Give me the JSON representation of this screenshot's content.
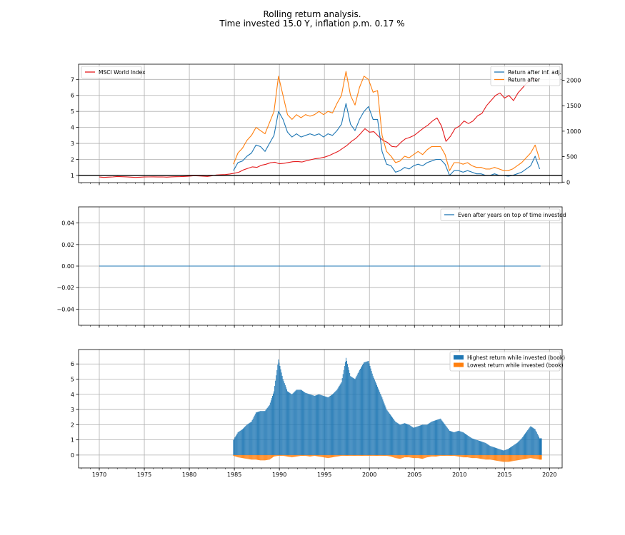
{
  "title_line1": "Rolling return analysis.",
  "title_line2": "Time invested 15.0 Y, inflation p.m. 0.17 %",
  "colors": {
    "msci": "#e41a1c",
    "blue": "#1f77b4",
    "orange": "#ff7f0e",
    "grid": "#b0b0b0"
  },
  "chart_data": [
    {
      "type": "line",
      "xlim": [
        1967.7,
        2021.4
      ],
      "xticks": [
        1970,
        1975,
        1980,
        1985,
        1990,
        1995,
        2000,
        2005,
        2010,
        2015,
        2020
      ],
      "ylim": [
        0.55,
        7.95
      ],
      "yticks": [
        1,
        2,
        3,
        4,
        5,
        6,
        7
      ],
      "y2lim": [
        -10,
        2315
      ],
      "y2ticks": [
        0,
        500,
        1000,
        1500,
        2000
      ],
      "hline": 1,
      "grid": true,
      "legend_left": {
        "placement": "top-left",
        "entries": [
          "MSCI World Index"
        ]
      },
      "legend_right": {
        "placement": "top-right",
        "entries": [
          "Return after inf. adj.",
          "Return after"
        ]
      },
      "series": [
        {
          "name": "MSCI World Index",
          "axis": "right",
          "x": [
            1970,
            1970.5,
            1971,
            1971.5,
            1972,
            1972.5,
            1973,
            1973.5,
            1974,
            1974.5,
            1975,
            1975.5,
            1976,
            1976.5,
            1977,
            1977.5,
            1978,
            1978.5,
            1979,
            1979.5,
            1980,
            1980.5,
            1981,
            1981.5,
            1982,
            1982.5,
            1983,
            1983.5,
            1984,
            1984.5,
            1985,
            1985.5,
            1986,
            1986.5,
            1987,
            1987.5,
            1988,
            1988.5,
            1989,
            1989.5,
            1990,
            1990.5,
            1991,
            1991.5,
            1992,
            1992.5,
            1993,
            1993.5,
            1994,
            1994.5,
            1995,
            1995.5,
            1996,
            1996.5,
            1997,
            1997.5,
            1998,
            1998.5,
            1999,
            1999.5,
            2000,
            2000.5,
            2001,
            2001.5,
            2002,
            2002.5,
            2003,
            2003.5,
            2004,
            2004.5,
            2005,
            2005.5,
            2006,
            2006.5,
            2007,
            2007.5,
            2008,
            2008.5,
            2009,
            2009.5,
            2010,
            2010.5,
            2011,
            2011.5,
            2012,
            2012.5,
            2013,
            2013.5,
            2014,
            2014.5,
            2015,
            2015.5,
            2016,
            2016.5,
            2017,
            2017.5,
            2018,
            2018.5
          ],
          "values": [
            100,
            92,
            98,
            102,
            110,
            106,
            104,
            98,
            92,
            96,
            100,
            102,
            104,
            100,
            102,
            98,
            103,
            106,
            108,
            112,
            118,
            126,
            122,
            116,
            112,
            124,
            140,
            146,
            148,
            160,
            175,
            195,
            240,
            270,
            300,
            290,
            330,
            350,
            380,
            390,
            360,
            370,
            385,
            400,
            405,
            395,
            420,
            440,
            460,
            470,
            490,
            520,
            560,
            600,
            660,
            720,
            800,
            860,
            950,
            1050,
            980,
            990,
            900,
            820,
            780,
            700,
            690,
            780,
            850,
            880,
            920,
            990,
            1060,
            1120,
            1200,
            1260,
            1100,
            800,
            900,
            1050,
            1100,
            1200,
            1150,
            1200,
            1300,
            1350,
            1500,
            1600,
            1700,
            1750,
            1650,
            1700,
            1600,
            1750,
            1850,
            1950,
            2000,
            2050
          ]
        },
        {
          "name": "Return after inf. adj.",
          "x": [
            1984.9,
            1985.4,
            1985.9,
            1986.4,
            1986.9,
            1987.4,
            1987.9,
            1988.4,
            1988.9,
            1989.4,
            1989.9,
            1990.4,
            1990.9,
            1991.4,
            1991.9,
            1992.4,
            1992.9,
            1993.4,
            1993.9,
            1994.4,
            1994.9,
            1995.4,
            1995.9,
            1996.4,
            1996.9,
            1997.4,
            1997.9,
            1998.4,
            1998.9,
            1999.4,
            1999.9,
            2000.4,
            2000.9,
            2001.4,
            2001.9,
            2002.4,
            2002.9,
            2003.4,
            2003.9,
            2004.4,
            2004.9,
            2005.4,
            2005.9,
            2006.4,
            2006.9,
            2007.4,
            2007.9,
            2008.4,
            2008.9,
            2009.4,
            2009.9,
            2010.4,
            2010.9,
            2011.4,
            2011.9,
            2012.4,
            2012.9,
            2013.4,
            2013.9,
            2014.4,
            2014.9,
            2015.4,
            2015.9,
            2016.4,
            2016.9,
            2017.4,
            2017.9,
            2018.4,
            2018.9
          ],
          "values": [
            1.3,
            1.8,
            1.9,
            2.2,
            2.4,
            2.9,
            2.8,
            2.5,
            3.0,
            3.5,
            5.0,
            4.5,
            3.7,
            3.4,
            3.6,
            3.4,
            3.5,
            3.6,
            3.5,
            3.6,
            3.4,
            3.6,
            3.5,
            3.8,
            4.2,
            5.5,
            4.2,
            3.8,
            4.5,
            5.0,
            5.3,
            4.5,
            4.5,
            2.5,
            1.7,
            1.6,
            1.2,
            1.3,
            1.5,
            1.4,
            1.6,
            1.7,
            1.6,
            1.8,
            1.9,
            2.0,
            2.0,
            1.7,
            1.0,
            1.3,
            1.3,
            1.2,
            1.3,
            1.2,
            1.1,
            1.1,
            1.0,
            1.0,
            1.1,
            1.0,
            1.0,
            0.95,
            1.0,
            1.1,
            1.2,
            1.4,
            1.6,
            2.2,
            1.4
          ]
        },
        {
          "name": "Return after",
          "x": [
            1984.9,
            1985.4,
            1985.9,
            1986.4,
            1986.9,
            1987.4,
            1987.9,
            1988.4,
            1988.9,
            1989.4,
            1989.9,
            1990.4,
            1990.9,
            1991.4,
            1991.9,
            1992.4,
            1992.9,
            1993.4,
            1993.9,
            1994.4,
            1994.9,
            1995.4,
            1995.9,
            1996.4,
            1996.9,
            1997.4,
            1997.9,
            1998.4,
            1998.9,
            1999.4,
            1999.9,
            2000.4,
            2000.9,
            2001.4,
            2001.9,
            2002.4,
            2002.9,
            2003.4,
            2003.9,
            2004.4,
            2004.9,
            2005.4,
            2005.9,
            2006.4,
            2006.9,
            2007.4,
            2007.9,
            2008.4,
            2008.9,
            2009.4,
            2009.9,
            2010.4,
            2010.9,
            2011.4,
            2011.9,
            2012.4,
            2012.9,
            2013.4,
            2013.9,
            2014.4,
            2014.9,
            2015.4,
            2015.9,
            2016.4,
            2016.9,
            2017.4,
            2017.9,
            2018.4,
            2018.9
          ],
          "values": [
            1.7,
            2.4,
            2.7,
            3.2,
            3.5,
            4.0,
            3.8,
            3.6,
            4.3,
            5.0,
            7.2,
            6.0,
            4.8,
            4.5,
            4.8,
            4.6,
            4.8,
            4.7,
            4.8,
            5.0,
            4.8,
            5.0,
            4.9,
            5.5,
            6.0,
            7.5,
            6.0,
            5.4,
            6.5,
            7.2,
            7.0,
            6.2,
            6.3,
            3.5,
            2.5,
            2.2,
            1.8,
            1.9,
            2.2,
            2.1,
            2.3,
            2.5,
            2.3,
            2.6,
            2.8,
            2.8,
            2.8,
            2.3,
            1.3,
            1.8,
            1.8,
            1.7,
            1.8,
            1.6,
            1.5,
            1.5,
            1.4,
            1.4,
            1.5,
            1.4,
            1.3,
            1.3,
            1.4,
            1.6,
            1.8,
            2.1,
            2.4,
            2.9,
            2.0
          ]
        }
      ]
    },
    {
      "type": "line",
      "xlim": [
        1967.7,
        2021.4
      ],
      "ylim": [
        -0.055,
        0.055
      ],
      "yticks": [
        0.04,
        0.02,
        0.0,
        -0.02,
        -0.04
      ],
      "ytick_labels": [
        "0.04",
        "0.02",
        "0.00",
        "−0.02",
        "−0.04"
      ],
      "grid": true,
      "legend": {
        "placement": "top-right",
        "entries": [
          "Even after years on top of time invested"
        ]
      },
      "series": [
        {
          "name": "Even after years on top of time invested",
          "x": [
            1970,
            2019
          ],
          "values": [
            0,
            0
          ]
        }
      ]
    },
    {
      "type": "bar",
      "xlim": [
        1967.7,
        2021.4
      ],
      "xticks": [
        1970,
        1975,
        1980,
        1985,
        1990,
        1995,
        2000,
        2005,
        2010,
        2015,
        2020
      ],
      "ylim": [
        -0.85,
        6.95
      ],
      "yticks": [
        0,
        1,
        2,
        3,
        4,
        5,
        6
      ],
      "grid": true,
      "legend": {
        "placement": "top-right",
        "entries": [
          "Highest return while invested (book)",
          "Lowest return while invested (book)"
        ]
      },
      "series": [
        {
          "name": "Highest return while invested (book)",
          "x": [
            1984.9,
            1985.4,
            1985.9,
            1986.4,
            1986.9,
            1987.4,
            1987.9,
            1988.4,
            1988.9,
            1989.4,
            1989.9,
            1990.4,
            1990.9,
            1991.4,
            1991.9,
            1992.4,
            1992.9,
            1993.4,
            1993.9,
            1994.4,
            1994.9,
            1995.4,
            1995.9,
            1996.4,
            1996.9,
            1997.4,
            1997.9,
            1998.4,
            1998.9,
            1999.4,
            1999.9,
            2000.4,
            2000.9,
            2001.4,
            2001.9,
            2002.4,
            2002.9,
            2003.4,
            2003.9,
            2004.4,
            2004.9,
            2005.4,
            2005.9,
            2006.4,
            2006.9,
            2007.4,
            2007.9,
            2008.4,
            2008.9,
            2009.4,
            2009.9,
            2010.4,
            2010.9,
            2011.4,
            2011.9,
            2012.4,
            2012.9,
            2013.4,
            2013.9,
            2014.4,
            2014.9,
            2015.4,
            2015.9,
            2016.4,
            2016.9,
            2017.4,
            2017.9,
            2018.4,
            2018.9
          ],
          "values": [
            1.0,
            1.5,
            1.7,
            2.0,
            2.2,
            2.8,
            2.9,
            2.9,
            3.3,
            4.2,
            6.3,
            5.0,
            4.2,
            4.0,
            4.3,
            4.3,
            4.1,
            4.0,
            3.9,
            4.0,
            3.9,
            3.8,
            4.0,
            4.3,
            4.8,
            6.4,
            5.2,
            5.0,
            5.6,
            6.1,
            6.2,
            5.2,
            4.5,
            3.8,
            3.0,
            2.6,
            2.2,
            2.0,
            2.1,
            2.0,
            1.8,
            1.9,
            2.0,
            2.0,
            2.2,
            2.3,
            2.4,
            2.0,
            1.6,
            1.5,
            1.6,
            1.5,
            1.3,
            1.1,
            1.0,
            0.9,
            0.8,
            0.6,
            0.5,
            0.4,
            0.3,
            0.4,
            0.6,
            0.8,
            1.1,
            1.5,
            1.9,
            1.7,
            1.1
          ]
        },
        {
          "name": "Lowest return while invested (book)",
          "x": [
            1984.9,
            1985.4,
            1985.9,
            1986.4,
            1986.9,
            1987.4,
            1987.9,
            1988.4,
            1988.9,
            1989.4,
            1989.9,
            1990.4,
            1990.9,
            1991.4,
            1991.9,
            1992.4,
            1992.9,
            1993.4,
            1993.9,
            1994.4,
            1994.9,
            1995.4,
            1995.9,
            1996.4,
            1996.9,
            1997.4,
            1997.9,
            1998.4,
            1998.9,
            1999.4,
            1999.9,
            2000.4,
            2000.9,
            2001.4,
            2001.9,
            2002.4,
            2002.9,
            2003.4,
            2003.9,
            2004.4,
            2004.9,
            2005.4,
            2005.9,
            2006.4,
            2006.9,
            2007.4,
            2007.9,
            2008.4,
            2008.9,
            2009.4,
            2009.9,
            2010.4,
            2010.9,
            2011.4,
            2011.9,
            2012.4,
            2012.9,
            2013.4,
            2013.9,
            2014.4,
            2014.9,
            2015.4,
            2015.9,
            2016.4,
            2016.9,
            2017.4,
            2017.9,
            2018.4,
            2018.9
          ],
          "values": [
            -0.05,
            -0.15,
            -0.2,
            -0.25,
            -0.3,
            -0.3,
            -0.35,
            -0.35,
            -0.3,
            -0.1,
            -0.05,
            -0.05,
            -0.1,
            -0.15,
            -0.1,
            -0.05,
            -0.05,
            -0.1,
            -0.05,
            -0.1,
            -0.15,
            -0.2,
            -0.15,
            -0.1,
            -0.05,
            -0.05,
            -0.05,
            -0.05,
            -0.05,
            -0.05,
            -0.05,
            -0.05,
            -0.05,
            -0.05,
            -0.05,
            -0.1,
            -0.2,
            -0.25,
            -0.15,
            -0.15,
            -0.2,
            -0.2,
            -0.25,
            -0.15,
            -0.1,
            -0.1,
            -0.05,
            -0.05,
            -0.05,
            -0.05,
            -0.1,
            -0.15,
            -0.15,
            -0.2,
            -0.2,
            -0.25,
            -0.3,
            -0.3,
            -0.35,
            -0.4,
            -0.45,
            -0.45,
            -0.4,
            -0.35,
            -0.3,
            -0.25,
            -0.2,
            -0.25,
            -0.3
          ]
        }
      ]
    }
  ]
}
